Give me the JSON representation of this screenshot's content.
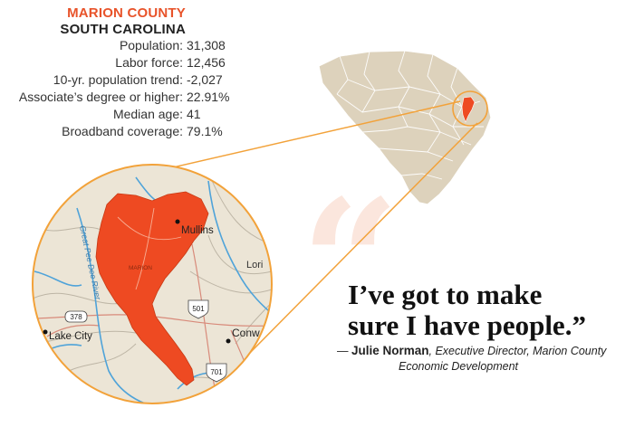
{
  "county_name": "MARION COUNTY",
  "state_name": "SOUTH CAROLINA",
  "stats": [
    {
      "label": "Population:",
      "value": "31,308"
    },
    {
      "label": "Labor force:",
      "value": "12,456"
    },
    {
      "label": "10-yr. population trend:",
      "value": "-2,027"
    },
    {
      "label": "Associate’s degree or higher:",
      "value": "22.91%"
    },
    {
      "label": "Median age:",
      "value": "41"
    },
    {
      "label": "Broadband coverage:",
      "value": "79.1%"
    }
  ],
  "map_labels": {
    "town_mullins": "Mullins",
    "town_lake_city": "Lake City",
    "town_conway": "Conw",
    "town_loris": "Lori",
    "county_label": "MARION",
    "river": "Great Pee Dee River",
    "hwy_378": "378",
    "hwy_501": "501",
    "hwy_701": "701"
  },
  "quote": {
    "mark": "“",
    "line1": "I’ve got to make",
    "line2": "sure I have people.”",
    "dash": "— ",
    "name": "Julie Norman",
    "title_line1": ", Executive Director, Marion County",
    "title_line2": "Economic Development"
  },
  "colors": {
    "accent": "#e8532a",
    "county_fill": "#ee4a22",
    "state_fill": "#ddd2bc",
    "map_bg": "#ece5d6",
    "water": "#4fa3d9",
    "leader_line": "#f2a23a"
  }
}
